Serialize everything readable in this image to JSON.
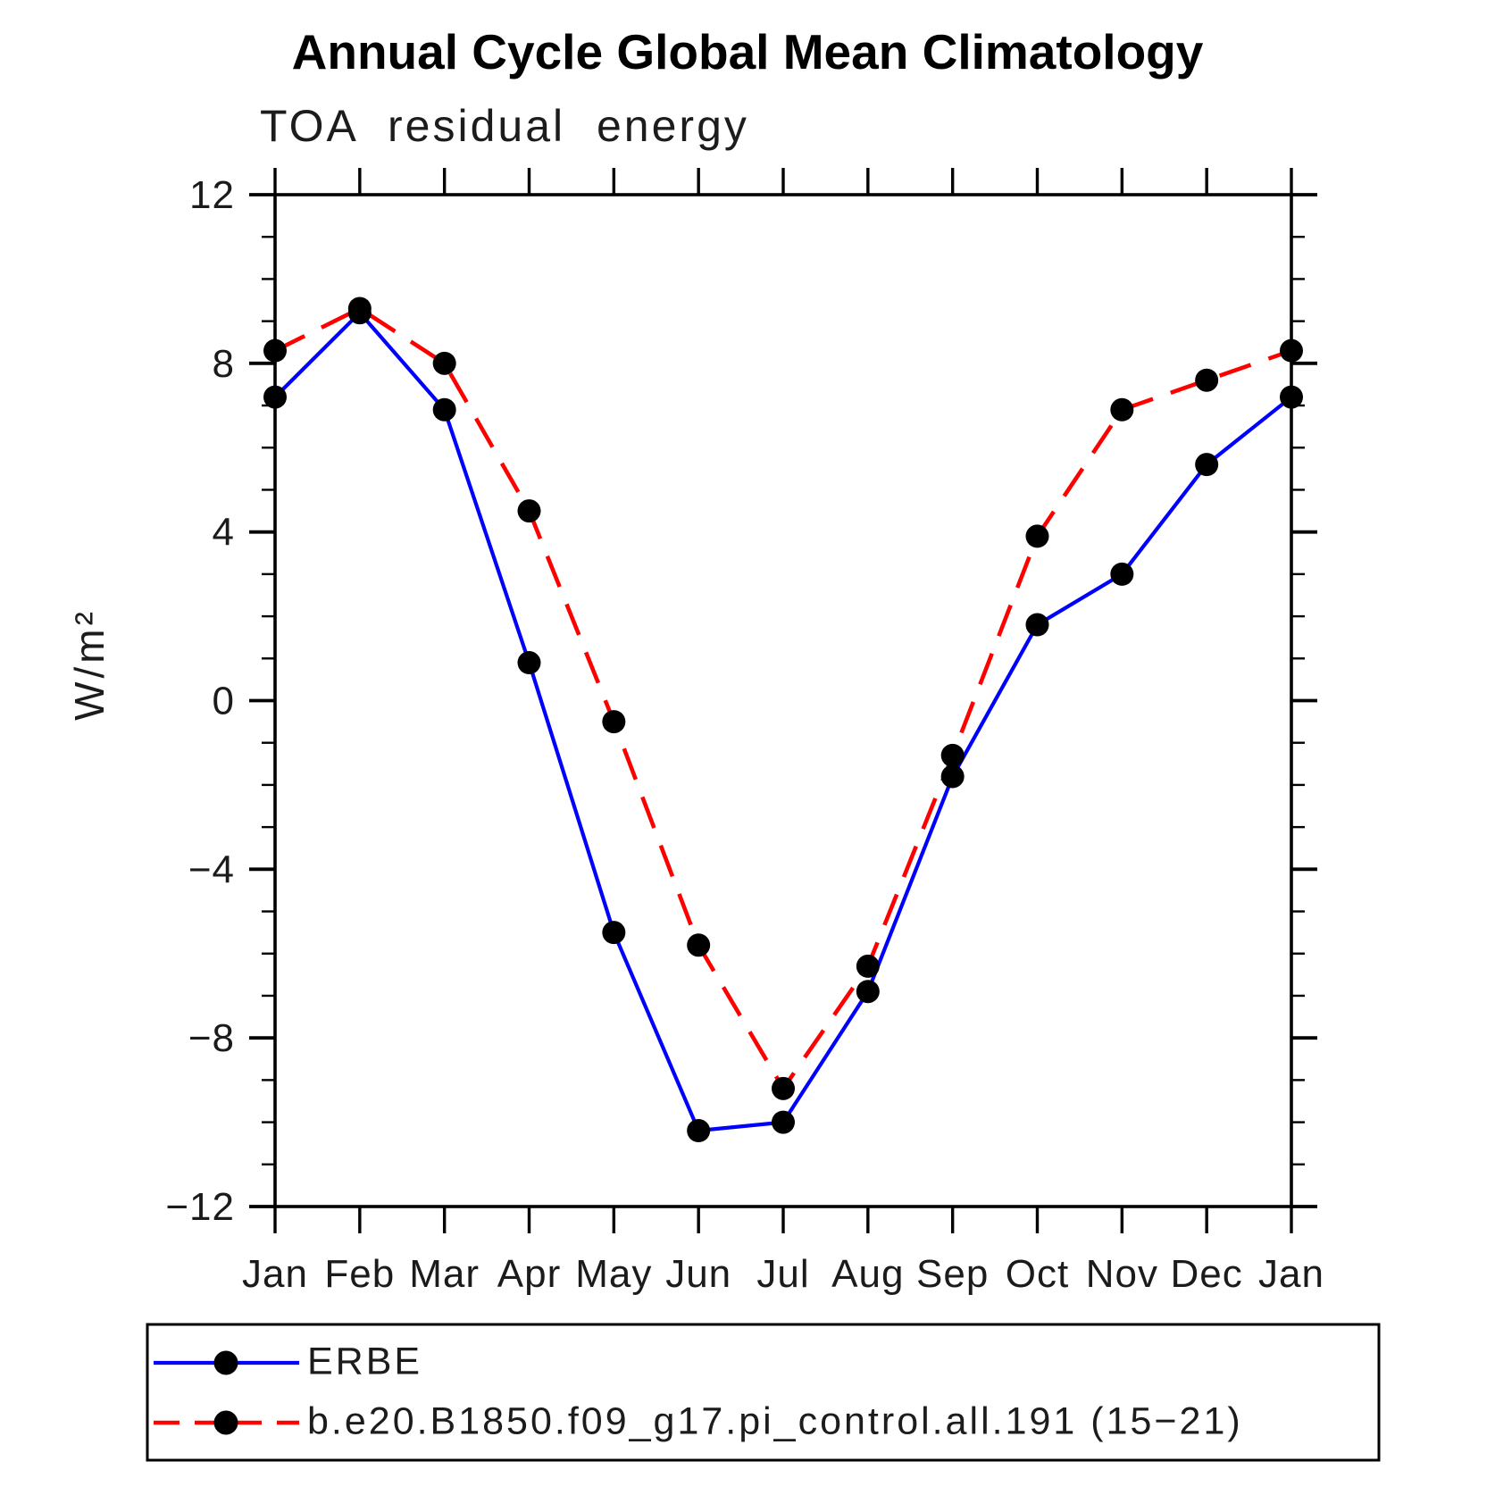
{
  "chart_data": {
    "type": "line",
    "title": "Annual Cycle Global Mean Climatology",
    "subtitle": "TOA residual energy",
    "ylabel": "W/m²",
    "xlabel": "",
    "categories": [
      "Jan",
      "Feb",
      "Mar",
      "Apr",
      "May",
      "Jun",
      "Jul",
      "Aug",
      "Sep",
      "Oct",
      "Nov",
      "Dec",
      "Jan"
    ],
    "ylim": [
      -12,
      12
    ],
    "ytick_major_step": 4,
    "ytick_minor_step": 1,
    "yticks": [
      {
        "value": 12,
        "label": "12"
      },
      {
        "value": 8,
        "label": "8"
      },
      {
        "value": 4,
        "label": "4"
      },
      {
        "value": 0,
        "label": "0"
      },
      {
        "value": -4,
        "label": "−4"
      },
      {
        "value": -8,
        "label": "−8"
      },
      {
        "value": -12,
        "label": "−12"
      }
    ],
    "grid": false,
    "legend_position": "bottom-left-box",
    "series": [
      {
        "name": "ERBE",
        "color": "#0000ff",
        "line_style": "solid",
        "marker": "circle",
        "marker_color": "#000000",
        "values": [
          7.2,
          9.2,
          6.9,
          0.9,
          -5.5,
          -10.2,
          -10.0,
          -6.9,
          -1.8,
          1.8,
          3.0,
          5.6,
          7.2
        ]
      },
      {
        "name": "b.e20.B1850.f09_g17.pi_control.all.191 (15−21)",
        "color": "#ff0000",
        "line_style": "dashed",
        "marker": "circle",
        "marker_color": "#000000",
        "values": [
          8.3,
          9.3,
          8.0,
          4.5,
          -0.5,
          -5.8,
          -9.2,
          -6.3,
          -1.3,
          3.9,
          6.9,
          7.6,
          8.3
        ]
      }
    ]
  }
}
